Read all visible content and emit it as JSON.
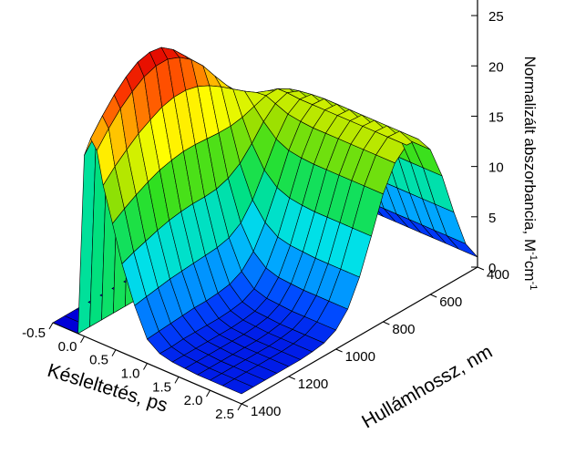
{
  "chart_data": {
    "type": "surface3d",
    "x_axis": {
      "label": "Késleltetés, ps",
      "ticks": [
        -0.5,
        0.0,
        0.5,
        1.0,
        1.5,
        2.0,
        2.5
      ],
      "tick_labels": [
        "-0.5",
        "0.0",
        "0.5",
        "1.0",
        "1.5",
        "2.0",
        "2.5"
      ],
      "range": [
        -0.5,
        2.5
      ]
    },
    "y_axis": {
      "label": "Hullámhossz, nm",
      "ticks": [
        400,
        600,
        800,
        1000,
        1200,
        1400
      ],
      "tick_labels": [
        "400",
        "600",
        "800",
        "1000",
        "1200",
        "1400"
      ],
      "range": [
        400,
        1400
      ]
    },
    "z_axis": {
      "label_main": "Normalizált abszorbancia, M",
      "label_sup1": "-1",
      "label_mid": "cm",
      "label_sup2": "-1",
      "ticks": [
        0,
        5,
        10,
        15,
        20,
        25
      ],
      "tick_labels": [
        "0",
        "5",
        "10",
        "15",
        "20",
        "25"
      ],
      "range": [
        0,
        27
      ]
    },
    "grid": false,
    "delays": [
      -0.5,
      -0.1,
      0.0,
      0.1,
      0.2,
      0.3,
      0.45,
      0.6,
      0.8,
      1.0,
      1.2,
      1.4,
      1.6,
      1.8,
      2.0,
      2.2,
      2.5
    ],
    "wavelengths": [
      400,
      450,
      500,
      550,
      600,
      650,
      700,
      750,
      800,
      850,
      900,
      950,
      1000,
      1050,
      1100,
      1150,
      1200,
      1250,
      1300,
      1350,
      1400
    ],
    "absorbance": [
      [
        0,
        0,
        0,
        0,
        0,
        0,
        0,
        0,
        0,
        0,
        0,
        0,
        0,
        0,
        0,
        0,
        0,
        0,
        0,
        0,
        0
      ],
      [
        0,
        0,
        0,
        0,
        0,
        0,
        0,
        0,
        0,
        0,
        0,
        0,
        0,
        0,
        0,
        0,
        0,
        0,
        0,
        0,
        0
      ],
      [
        0.9,
        2.5,
        5.5,
        8.7,
        10.9,
        11.7,
        11.9,
        12.3,
        13.4,
        15,
        16.9,
        18.8,
        20.5,
        21.8,
        22.5,
        22.7,
        22.4,
        21.7,
        20.7,
        19.5,
        18
      ],
      [
        1,
        2.7,
        6,
        9.5,
        12,
        13,
        13.4,
        14,
        15.2,
        16.9,
        18.8,
        20.9,
        22.7,
        24,
        24.9,
        25.1,
        24.8,
        24,
        22.9,
        21.5,
        19.9
      ],
      [
        1,
        2.9,
        6.4,
        10.1,
        12.8,
        14.1,
        14.7,
        15.3,
        16.5,
        18,
        19.6,
        21.3,
        22.6,
        23.5,
        24,
        24,
        23.6,
        22.8,
        21.8,
        20.5,
        19
      ],
      [
        1,
        3,
        6.6,
        10.6,
        13.5,
        15,
        15.7,
        16.2,
        17,
        17.9,
        18.8,
        19.6,
        20.2,
        20.5,
        20.5,
        20.2,
        19.6,
        18.9,
        18,
        17,
        15.8
      ],
      [
        1,
        3,
        6.8,
        11,
        14,
        15.6,
        16.3,
        16.3,
        15.9,
        15.5,
        15.3,
        15.3,
        15.4,
        15.5,
        15.5,
        15.3,
        15,
        14.5,
        13.9,
        13.2,
        12.4
      ],
      [
        1,
        3,
        6.8,
        11,
        14.2,
        15.8,
        16.3,
        15.9,
        14.8,
        13.3,
        12,
        11.2,
        10.8,
        10.7,
        10.7,
        10.6,
        10.4,
        10.1,
        9.7,
        9.3,
        8.8
      ],
      [
        1,
        3,
        6.8,
        11.1,
        14.3,
        16,
        16.2,
        15.4,
        13.6,
        11.2,
        8.9,
        7.3,
        6.5,
        6.2,
        6.1,
        6,
        5.9,
        5.8,
        5.6,
        5.4,
        5.2
      ],
      [
        1,
        3,
        6.8,
        11.1,
        14.4,
        16.1,
        16.2,
        15.2,
        13,
        10,
        7.2,
        5,
        3.7,
        3.1,
        2.9,
        2.8,
        2.8,
        2.7,
        2.6,
        2.5,
        2.4
      ],
      [
        1,
        3,
        6.8,
        11.1,
        14.4,
        16.1,
        16.2,
        15.1,
        12.8,
        9.5,
        6.3,
        3.9,
        2.5,
        1.9,
        1.7,
        1.6,
        1.6,
        1.6,
        1.6,
        1.5,
        1.5
      ],
      [
        1,
        3,
        6.8,
        11.1,
        14.4,
        16.1,
        16.2,
        15.1,
        12.7,
        9.3,
        6,
        3.5,
        2.1,
        1.5,
        1.3,
        1.2,
        1.2,
        1.2,
        1.2,
        1.2,
        1.2
      ],
      [
        1,
        3,
        6.8,
        11.1,
        14.4,
        16.1,
        16.2,
        15.1,
        12.7,
        9.2,
        5.9,
        3.4,
        2,
        1.4,
        1.2,
        1.1,
        1.1,
        1.1,
        1.1,
        1.1,
        1.1
      ],
      [
        1,
        3,
        6.8,
        11.1,
        14.4,
        16.1,
        16.2,
        15.1,
        12.7,
        9.2,
        5.8,
        3.3,
        1.9,
        1.3,
        1.1,
        1,
        1,
        1,
        1,
        1,
        1
      ],
      [
        1,
        3,
        6.8,
        11.1,
        14.4,
        16.1,
        16.2,
        15.1,
        12.7,
        9.2,
        5.8,
        3.3,
        1.9,
        1.3,
        1.1,
        1,
        1,
        1,
        1,
        1,
        1
      ],
      [
        1,
        3,
        6.8,
        11.1,
        14.4,
        16.1,
        16.2,
        15.1,
        12.7,
        9.2,
        5.8,
        3.3,
        1.9,
        1.3,
        1.1,
        1,
        1,
        1,
        1,
        1,
        1
      ],
      [
        1,
        3,
        6.8,
        11.1,
        14.4,
        16.1,
        16.2,
        15.1,
        12.7,
        9.2,
        5.8,
        3.3,
        1.9,
        1.3,
        1.1,
        1,
        1,
        1,
        1,
        1,
        1
      ]
    ],
    "colormap": [
      "#0000d8",
      "#0046ff",
      "#00aaff",
      "#00e0e8",
      "#00e080",
      "#30e020",
      "#a0e000",
      "#ffff00",
      "#ffb000",
      "#ff4000",
      "#e00000"
    ]
  }
}
